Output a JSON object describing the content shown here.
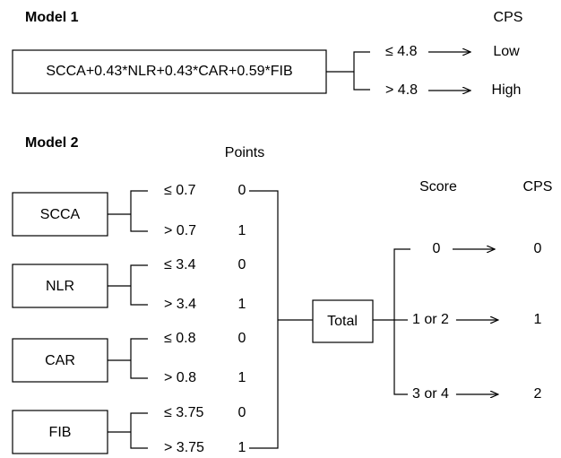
{
  "model1": {
    "title": "Model 1",
    "cps_header": "CPS",
    "formula": "SCCA+0.43*NLR+0.43*CAR+0.59*FIB",
    "branches": [
      {
        "condition": "≤ 4.8",
        "result": "Low"
      },
      {
        "condition": "> 4.8",
        "result": "High"
      }
    ]
  },
  "model2": {
    "title": "Model 2",
    "points_header": "Points",
    "score_header": "Score",
    "cps_header": "CPS",
    "total": "Total",
    "variables": [
      {
        "name": "SCCA",
        "low": {
          "condition": "≤ 0.7",
          "points": 0
        },
        "high": {
          "condition": "> 0.7",
          "points": 1
        }
      },
      {
        "name": "NLR",
        "low": {
          "condition": "≤ 3.4",
          "points": 0
        },
        "high": {
          "condition": "> 3.4",
          "points": 1
        }
      },
      {
        "name": "CAR",
        "low": {
          "condition": "≤ 0.8",
          "points": 0
        },
        "high": {
          "condition": "> 0.8",
          "points": 1
        }
      },
      {
        "name": "FIB",
        "low": {
          "condition": "≤ 3.75",
          "points": 0
        },
        "high": {
          "condition": "> 3.75",
          "points": 1
        }
      }
    ],
    "outcomes": [
      {
        "score": "0",
        "cps": 0
      },
      {
        "score": "1 or 2",
        "cps": 1
      },
      {
        "score": "3 or 4",
        "cps": 2
      }
    ]
  }
}
